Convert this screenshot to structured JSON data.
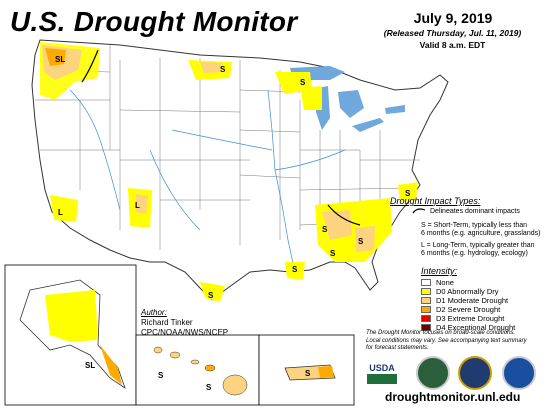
{
  "map": {
    "title": "U.S. Drought Monitor",
    "date": "July 9, 2019",
    "released": "(Released Thursday, Jul. 11, 2019)",
    "valid": "Valid 8 a.m. EDT",
    "labels": {
      "sl": "SL",
      "s": "S",
      "l": "L"
    }
  },
  "impacts": {
    "title": "Drought Impact Types:",
    "delineates": "Delineates dominant impacts",
    "short_term_1": "S = Short-Term, typically less than",
    "short_term_2": "6 months (e.g. agriculture, grasslands)",
    "long_term_1": "L = Long-Term, typically greater than",
    "long_term_2": "6 months (e.g. hydrology, ecology)"
  },
  "intensity": {
    "title": "Intensity:",
    "items": [
      {
        "label": "None",
        "color": "#ffffff"
      },
      {
        "label": "D0 Abnormally Dry",
        "color": "#ffff00"
      },
      {
        "label": "D1 Moderate Drought",
        "color": "#fcd37f"
      },
      {
        "label": "D2 Severe Drought",
        "color": "#ffaa00"
      },
      {
        "label": "D3 Extreme Drought",
        "color": "#e60000"
      },
      {
        "label": "D4 Exceptional Drought",
        "color": "#730000"
      }
    ]
  },
  "note": {
    "line1": "The Drought Monitor focuses on broad-scale conditions.",
    "line2": "Local conditions may vary. See accompanying text summary",
    "line3": "for forecast statements."
  },
  "author": {
    "heading": "Author:",
    "name": "Richard Tinker",
    "org": "CPC/NOAA/NWS/NCEP"
  },
  "footer": {
    "url": "droughtmonitor.unl.edu",
    "logos": [
      "usda-logo",
      "ndmc-logo",
      "doc-logo",
      "noaa-logo"
    ],
    "usda_text": "USDA"
  },
  "colors": {
    "water": "#7fb6e0",
    "lakes": "#6fa8dc",
    "rivers": "#3b8fd8",
    "borders": "#555555"
  }
}
